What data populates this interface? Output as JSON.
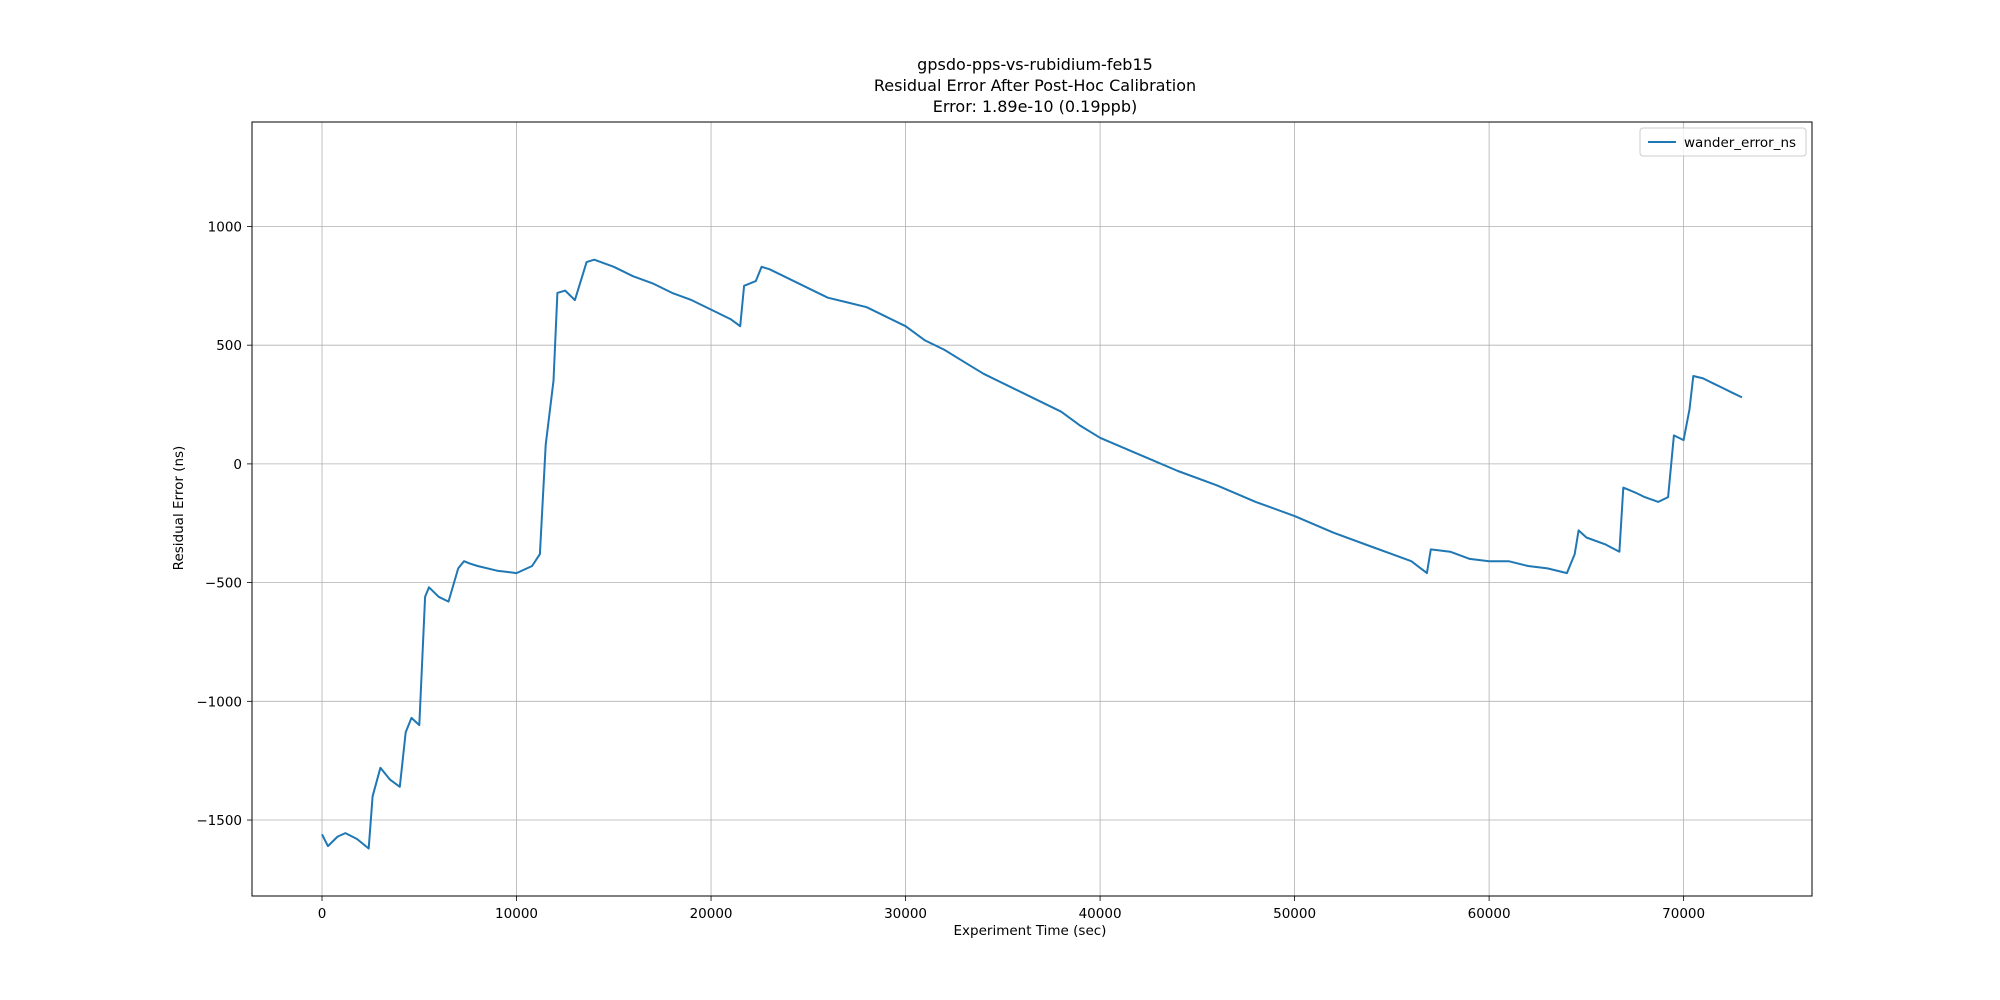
{
  "chart_data": {
    "type": "line",
    "title": "gpsdo-pps-vs-rubidium-feb15",
    "subtitle": "Residual Error After Post-Hoc Calibration",
    "subtitle2": "Error: 1.89e-10 (0.19ppb)",
    "xlabel": "Experiment Time (sec)",
    "ylabel": "Residual Error (ns)",
    "xlim": [
      -3600,
      76600
    ],
    "ylim": [
      -1820,
      1440
    ],
    "xticks": [
      0,
      10000,
      20000,
      30000,
      40000,
      50000,
      60000,
      70000
    ],
    "xtick_labels": [
      "0",
      "10000",
      "20000",
      "30000",
      "40000",
      "50000",
      "60000",
      "70000"
    ],
    "yticks": [
      -1500,
      -1000,
      -500,
      0,
      500,
      1000
    ],
    "ytick_labels": [
      "−1500",
      "−1000",
      "−500",
      "0",
      "500",
      "1000"
    ],
    "grid": true,
    "legend_position": "upper-right",
    "series": [
      {
        "name": "wander_error_ns",
        "color": "#1f77b4",
        "x": [
          0,
          300,
          800,
          1200,
          1800,
          2400,
          2600,
          3000,
          3500,
          4000,
          4300,
          4600,
          5000,
          5300,
          5500,
          6000,
          6500,
          7000,
          7300,
          7600,
          8000,
          9000,
          10000,
          10800,
          11200,
          11500,
          11900,
          12100,
          12500,
          13000,
          13600,
          14000,
          15000,
          16000,
          17000,
          18000,
          19000,
          20000,
          21000,
          21500,
          21700,
          22300,
          22600,
          23000,
          24000,
          25000,
          26000,
          27000,
          28000,
          29000,
          30000,
          31000,
          32000,
          33000,
          34000,
          35000,
          36000,
          37000,
          38000,
          39000,
          40000,
          42000,
          44000,
          46000,
          48000,
          50000,
          52000,
          54000,
          55000,
          56000,
          56800,
          57000,
          58000,
          59000,
          60000,
          61000,
          62000,
          63000,
          64000,
          64400,
          64600,
          65000,
          66000,
          66700,
          66900,
          67500,
          68000,
          68700,
          69200,
          69500,
          70000,
          70300,
          70500,
          71000,
          71500,
          72000,
          72500,
          73000
        ],
        "y": [
          -1560,
          -1610,
          -1570,
          -1555,
          -1580,
          -1620,
          -1400,
          -1280,
          -1330,
          -1360,
          -1130,
          -1070,
          -1100,
          -560,
          -520,
          -560,
          -580,
          -440,
          -410,
          -420,
          -430,
          -450,
          -460,
          -430,
          -380,
          80,
          350,
          720,
          730,
          690,
          850,
          860,
          830,
          790,
          760,
          720,
          690,
          650,
          610,
          580,
          750,
          770,
          830,
          820,
          780,
          740,
          700,
          680,
          660,
          620,
          580,
          520,
          480,
          430,
          380,
          340,
          300,
          260,
          220,
          160,
          110,
          40,
          -30,
          -90,
          -160,
          -220,
          -290,
          -350,
          -380,
          -410,
          -460,
          -360,
          -370,
          -400,
          -410,
          -410,
          -430,
          -440,
          -460,
          -380,
          -280,
          -310,
          -340,
          -370,
          -100,
          -120,
          -140,
          -160,
          -140,
          120,
          100,
          230,
          370,
          360,
          340,
          320,
          300,
          280
        ]
      }
    ]
  }
}
